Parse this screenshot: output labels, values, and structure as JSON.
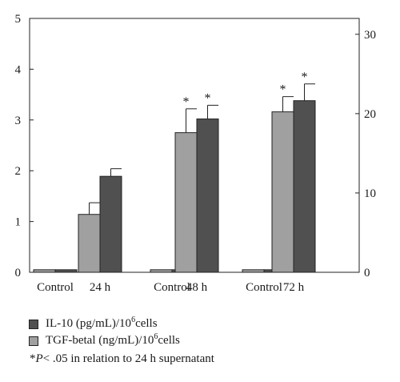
{
  "chart_data": {
    "type": "bar",
    "groups": [
      {
        "label": "Control",
        "values": [
          0.05,
          0.05
        ]
      },
      {
        "label": "24 h",
        "values": [
          1.14,
          1.89
        ],
        "errors": [
          0.23,
          0.15
        ],
        "significant": [
          false,
          false
        ]
      },
      {
        "label": "Control",
        "values": [
          0.05,
          0.05
        ]
      },
      {
        "label": "48 h",
        "values": [
          2.75,
          3.02
        ],
        "errors": [
          0.47,
          0.27
        ],
        "significant": [
          true,
          true
        ]
      },
      {
        "label": "Control",
        "values": [
          0.05,
          0.05
        ]
      },
      {
        "label": "72 h",
        "values": [
          3.16,
          3.38
        ],
        "errors": [
          0.3,
          0.33
        ],
        "significant": [
          true,
          true
        ]
      }
    ],
    "series": [
      {
        "name": "TGF-betal (ng/mL)/10⁶cells",
        "color": "#a0a0a0",
        "axis": "left"
      },
      {
        "name": "IL-10 (pg/mL)/10⁶cells",
        "color": "#505050",
        "axis": "right"
      }
    ],
    "y_left": {
      "lim": [
        0,
        5
      ],
      "ticks": [
        "0",
        "1",
        "2",
        "3",
        "4",
        "5"
      ]
    },
    "y_right": {
      "lim": [
        0,
        32
      ],
      "ticks": [
        "0",
        "10",
        "20",
        "30"
      ]
    },
    "significance_marker": "*",
    "grid": false
  },
  "legend": {
    "il10_prefix": "IL-10 (pg/mL)/10",
    "il10_sup": "6",
    "il10_suffix": "cells",
    "tgf_prefix": "TGF-betal (ng/mL)/10",
    "tgf_sup": "6",
    "tgf_suffix": "cells",
    "note_star": "*",
    "note_p": "P",
    "note_rest": " < .05 in relation to 24 h supernatant"
  }
}
